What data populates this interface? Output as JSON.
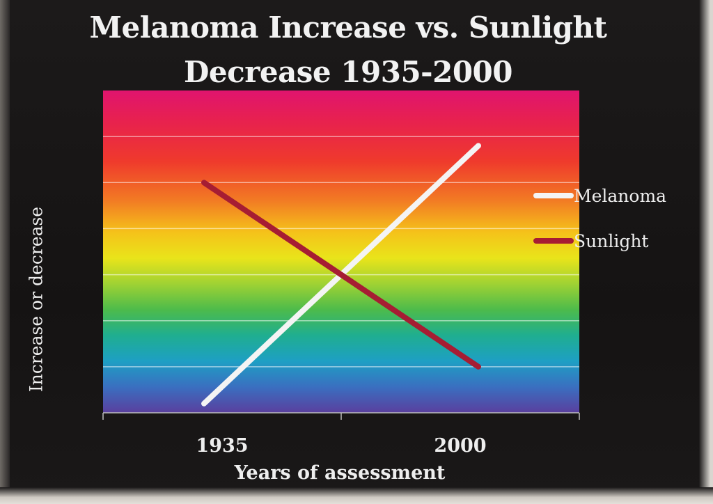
{
  "chart_data": {
    "type": "line",
    "title": "Melanoma Increase vs. Sunlight\nDecrease 1935-2000",
    "xlabel": "Years of assessment",
    "ylabel": "Increase or decrease",
    "categories": [
      "1935",
      "2000"
    ],
    "series": [
      {
        "name": "Melanoma",
        "values": [
          0.2,
          5.8
        ],
        "color": "#f4f4f4"
      },
      {
        "name": "Sunlight",
        "values": [
          5.0,
          1.0
        ],
        "color": "#a61d33"
      }
    ],
    "ylim": [
      0,
      7
    ],
    "y_ticks_shown": false,
    "grid": true,
    "legend_position": "right",
    "background": "rainbow-gradient"
  }
}
